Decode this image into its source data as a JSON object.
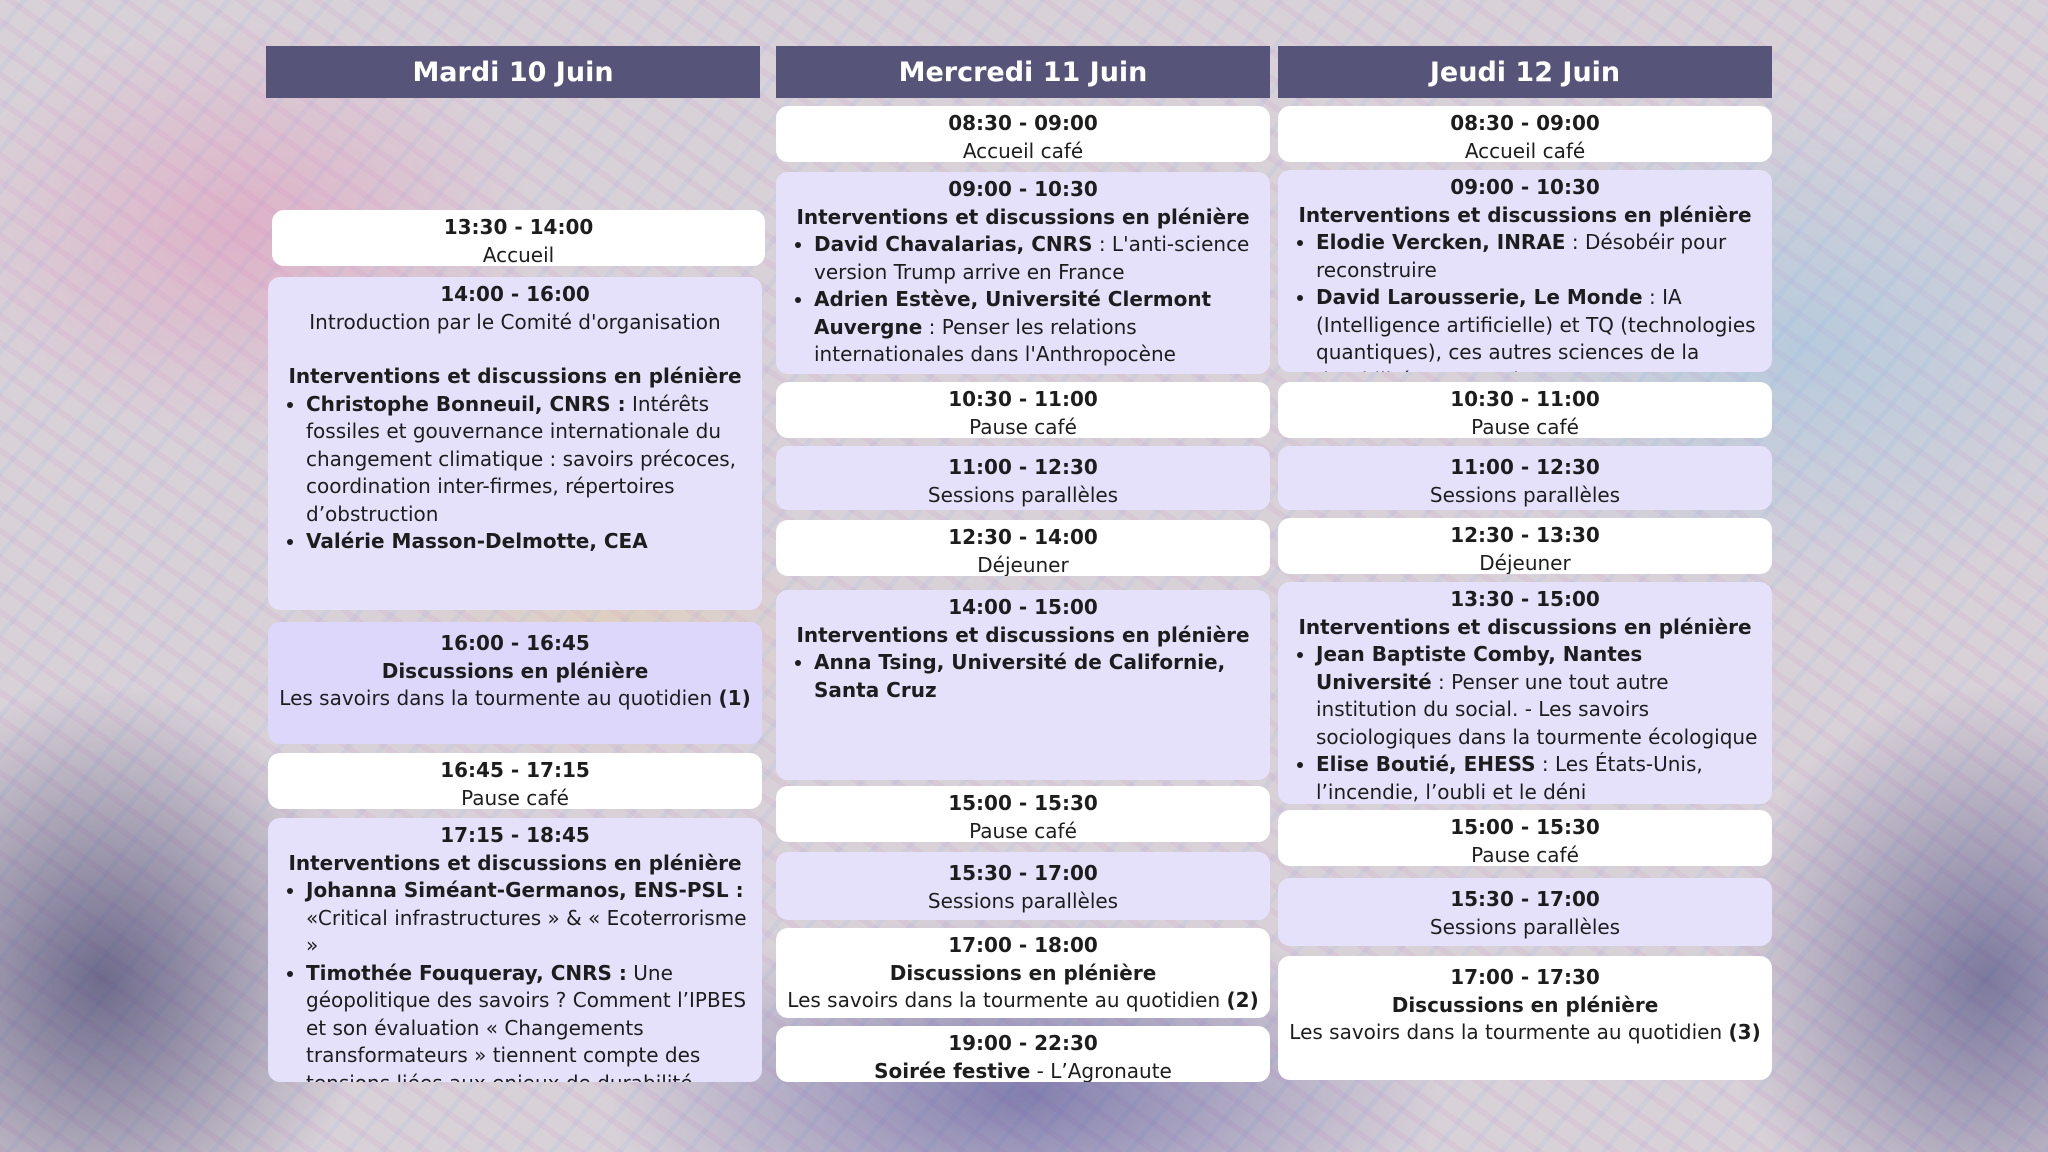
{
  "days": [
    {
      "title": "Mardi 10 Juin",
      "slots": [
        {
          "time": "13:30 - 14:00",
          "title": "Accueil"
        },
        {
          "time": "14:00 - 16:00",
          "intro": "Introduction par le Comité d'organisation",
          "heading": "Interventions et discussions en plénière",
          "items": [
            {
              "speaker": "Christophe Bonneuil, CNRS :",
              "text": " Intérêts fossiles et gouvernance internationale du changement climatique : savoirs précoces, coordination inter-firmes, répertoires d’obstruction"
            },
            {
              "speaker": "Valérie Masson-Delmotte, CEA",
              "text": ""
            }
          ]
        },
        {
          "time": "16:00 - 16:45",
          "heading": "Discussions en plénière",
          "text": "Les savoirs dans la tourmente au quotidien ",
          "suffix": "(1)"
        },
        {
          "time": "16:45 - 17:15",
          "title": "Pause café"
        },
        {
          "time": "17:15 - 18:45",
          "heading": "Interventions et discussions en plénière",
          "items": [
            {
              "speaker": "Johanna Siméant-Germanos, ENS-PSL :",
              "text": " «Critical infrastructures » & « Ecoterrorisme »"
            },
            {
              "speaker": "Timothée Fouqueray, CNRS :",
              "text": "  Une géopolitique des savoirs ? Comment l’IPBES et son évaluation « Changements transformateurs » tiennent compte des tensions liées aux enjeux de durabilité"
            }
          ]
        }
      ]
    },
    {
      "title": "Mercredi 11 Juin",
      "slots": [
        {
          "time": "08:30 - 09:00",
          "title": "Accueil café"
        },
        {
          "time": "09:00 - 10:30",
          "heading": "Interventions et discussions en plénière",
          "items": [
            {
              "speaker": "David Chavalarias, CNRS",
              "text": " : L'anti-science version Trump arrive en France"
            },
            {
              "speaker": "Adrien Estève, Université Clermont Auvergne",
              "text": " : Penser les relations internationales dans l'Anthropocène"
            }
          ]
        },
        {
          "time": "10:30 - 11:00",
          "title": "Pause café"
        },
        {
          "time": "11:00 - 12:30",
          "title": "Sessions parallèles"
        },
        {
          "time": "12:30 - 14:00",
          "title": "Déjeuner"
        },
        {
          "time": "14:00 - 15:00",
          "heading": "Interventions et discussions en plénière",
          "items": [
            {
              "speaker": "Anna Tsing, Université de Californie, Santa Cruz",
              "text": ""
            }
          ]
        },
        {
          "time": "15:00 - 15:30",
          "title": "Pause café"
        },
        {
          "time": "15:30 - 17:00",
          "title": "Sessions parallèles"
        },
        {
          "time": "17:00 - 18:00",
          "heading": "Discussions en plénière",
          "text": "Les savoirs dans la tourmente au quotidien ",
          "suffix": "(2)"
        },
        {
          "time": "19:00 - 22:30",
          "bold": "Soirée festive",
          "rest": " - L’Agronaute"
        }
      ]
    },
    {
      "title": "Jeudi 12 Juin",
      "slots": [
        {
          "time": "08:30 - 09:00",
          "title": "Accueil café"
        },
        {
          "time": "09:00 - 10:30",
          "heading": "Interventions et discussions en plénière",
          "items": [
            {
              "speaker": "Elodie Vercken, INRAE",
              "text": " : Désobéir pour reconstruire"
            },
            {
              "speaker": "David Larousserie, Le Monde",
              "text": " : IA (Intelligence artificielle) et TQ (technologies quantiques), ces autres sciences de la durabilité sous tension"
            }
          ]
        },
        {
          "time": "10:30 - 11:00",
          "title": "Pause café"
        },
        {
          "time": "11:00 - 12:30",
          "title": "Sessions parallèles"
        },
        {
          "time": "12:30 - 13:30",
          "title": "Déjeuner"
        },
        {
          "time": "13:30 - 15:00",
          "heading": "Interventions et discussions en plénière",
          "items": [
            {
              "speaker": "Jean Baptiste Comby, Nantes Université",
              "text": " : Penser une tout autre institution du social.  - Les savoirs sociologiques dans la tourmente écologique"
            },
            {
              "speaker": "Elise Boutié, EHESS",
              "text": " : Les États-Unis, l’incendie, l’oubli et le déni"
            }
          ]
        },
        {
          "time": "15:00 - 15:30",
          "title": "Pause café"
        },
        {
          "time": "15:30 - 17:00",
          "title": "Sessions parallèles"
        },
        {
          "time": "17:00 - 17:30",
          "heading": "Discussions en plénière",
          "text": "Les savoirs dans la tourmente au quotidien ",
          "suffix": "(3)"
        }
      ]
    }
  ]
}
